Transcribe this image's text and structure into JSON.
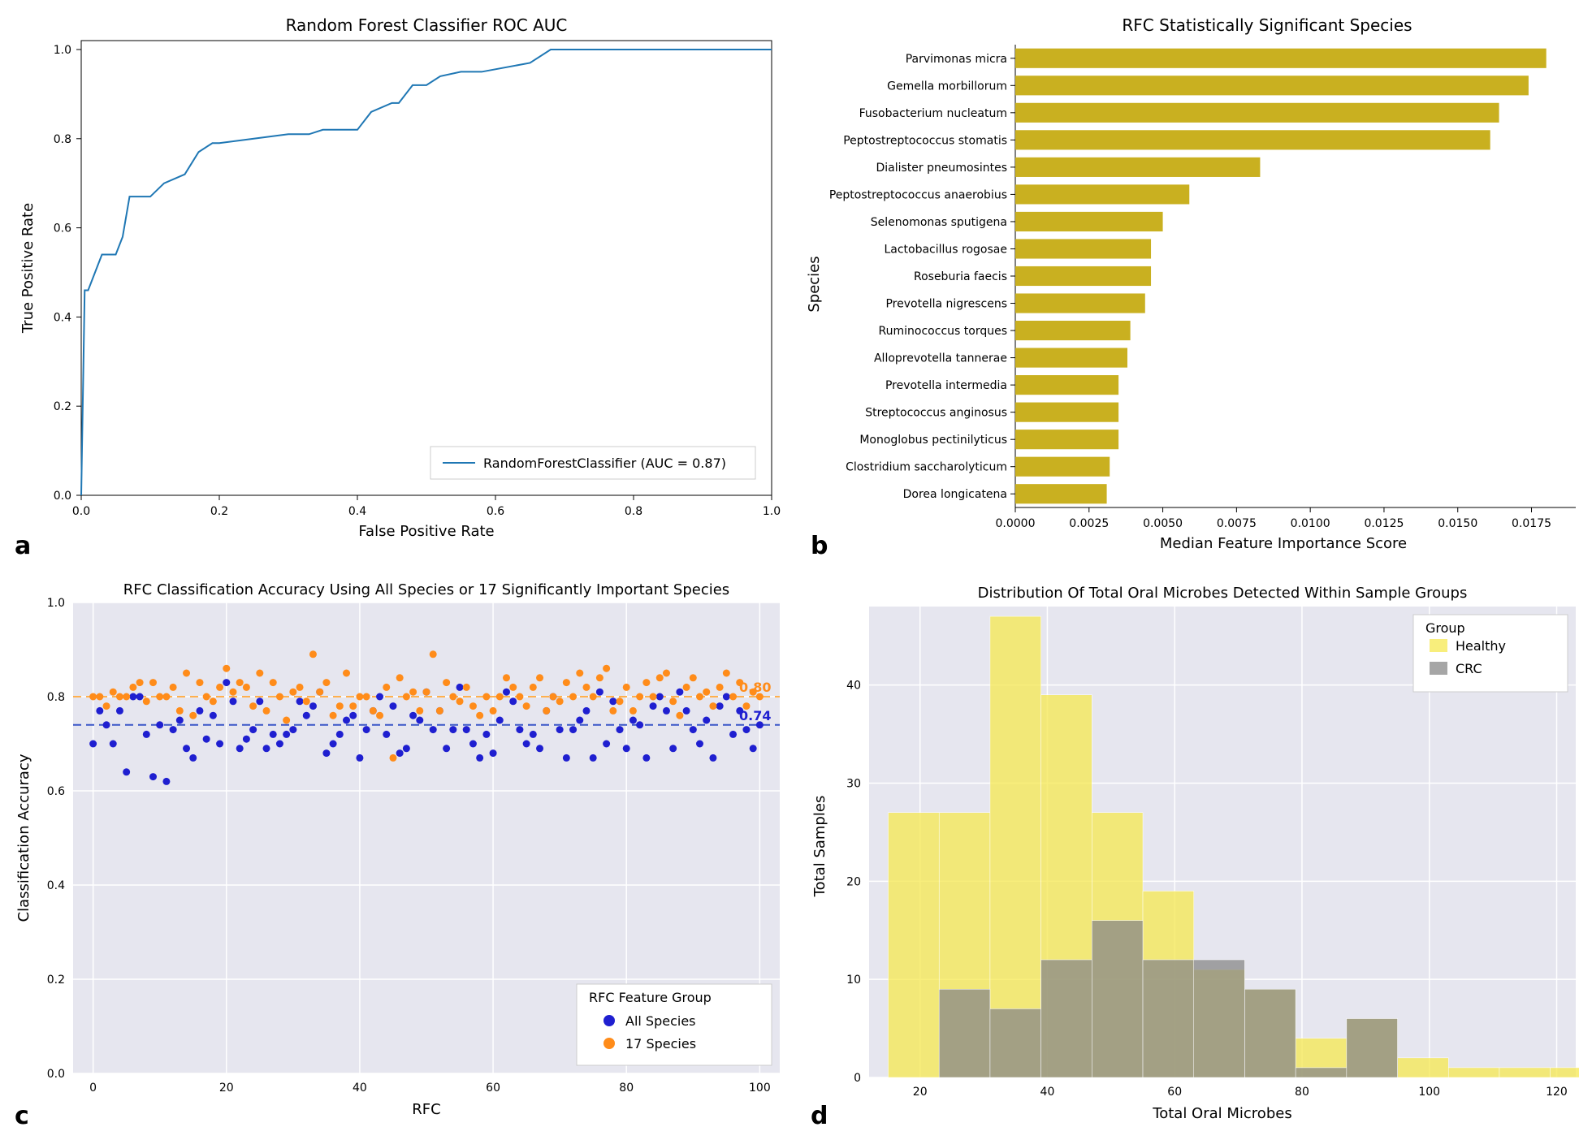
{
  "panel_a": {
    "label": "a",
    "type": "line",
    "title": "Random Forest Classifier ROC AUC",
    "xlabel": "False Positive Rate",
    "ylabel": "True Positive Rate",
    "xlim": [
      0,
      1.0
    ],
    "ylim": [
      0,
      1.02
    ],
    "xtick_step": 0.2,
    "ytick_step": 0.2,
    "line_color": "#1f77b4",
    "line_width": 2,
    "background_color": "#ffffff",
    "border_color": "#000000",
    "legend_text": "RandomForestClassifier (AUC = 0.87)",
    "roc_points": [
      [
        0.0,
        0.0
      ],
      [
        0.005,
        0.46
      ],
      [
        0.01,
        0.46
      ],
      [
        0.02,
        0.5
      ],
      [
        0.03,
        0.54
      ],
      [
        0.04,
        0.54
      ],
      [
        0.05,
        0.54
      ],
      [
        0.06,
        0.58
      ],
      [
        0.07,
        0.67
      ],
      [
        0.1,
        0.67
      ],
      [
        0.12,
        0.7
      ],
      [
        0.15,
        0.72
      ],
      [
        0.17,
        0.77
      ],
      [
        0.19,
        0.79
      ],
      [
        0.2,
        0.79
      ],
      [
        0.25,
        0.8
      ],
      [
        0.3,
        0.81
      ],
      [
        0.33,
        0.81
      ],
      [
        0.35,
        0.82
      ],
      [
        0.4,
        0.82
      ],
      [
        0.42,
        0.86
      ],
      [
        0.45,
        0.88
      ],
      [
        0.46,
        0.88
      ],
      [
        0.48,
        0.92
      ],
      [
        0.5,
        0.92
      ],
      [
        0.52,
        0.94
      ],
      [
        0.55,
        0.95
      ],
      [
        0.58,
        0.95
      ],
      [
        0.65,
        0.97
      ],
      [
        0.68,
        1.0
      ],
      [
        0.8,
        1.0
      ],
      [
        1.0,
        1.0
      ]
    ]
  },
  "panel_b": {
    "label": "b",
    "type": "bar-horizontal",
    "title": "RFC Statistically Significant Species",
    "xlabel": "Median Feature Importance Score",
    "ylabel": "Species",
    "bar_color": "#c9b020",
    "background_color": "#ffffff",
    "xlim": [
      0,
      0.019
    ],
    "xticks": [
      "0.0000",
      "0.0025",
      "0.0050",
      "0.0075",
      "0.0100",
      "0.0125",
      "0.0150",
      "0.0175"
    ],
    "xtick_values": [
      0,
      0.0025,
      0.005,
      0.0075,
      0.01,
      0.0125,
      0.015,
      0.0175
    ],
    "species": [
      {
        "name": "Parvimonas micra",
        "value": 0.018
      },
      {
        "name": "Gemella morbillorum",
        "value": 0.0174
      },
      {
        "name": "Fusobacterium nucleatum",
        "value": 0.0164
      },
      {
        "name": "Peptostreptococcus stomatis",
        "value": 0.0161
      },
      {
        "name": "Dialister pneumosintes",
        "value": 0.0083
      },
      {
        "name": "Peptostreptococcus anaerobius",
        "value": 0.0059
      },
      {
        "name": "Selenomonas sputigena",
        "value": 0.005
      },
      {
        "name": "Lactobacillus rogosae",
        "value": 0.0046
      },
      {
        "name": "Roseburia faecis",
        "value": 0.0046
      },
      {
        "name": "Prevotella nigrescens",
        "value": 0.0044
      },
      {
        "name": "Ruminococcus torques",
        "value": 0.0039
      },
      {
        "name": "Alloprevotella tannerae",
        "value": 0.0038
      },
      {
        "name": "Prevotella intermedia",
        "value": 0.0035
      },
      {
        "name": "Streptococcus anginosus",
        "value": 0.0035
      },
      {
        "name": "Monoglobus pectinilyticus",
        "value": 0.0035
      },
      {
        "name": "Clostridium saccharolyticum",
        "value": 0.0032
      },
      {
        "name": "Dorea longicatena",
        "value": 0.0031
      }
    ]
  },
  "panel_c": {
    "label": "c",
    "type": "scatter",
    "title": "RFC Classification Accuracy Using All Species or 17 Significantly Important Species",
    "xlabel": "RFC",
    "ylabel": "Classification Accuracy",
    "background_color": "#e6e6ef",
    "grid_color": "#ffffff",
    "xlim": [
      -3,
      103
    ],
    "ylim": [
      0,
      1.0
    ],
    "xtick_step": 20,
    "ytick_step": 0.2,
    "legend_title": "RFC Feature Group",
    "series": [
      {
        "name": "All Species",
        "color": "#1f1fd0",
        "mean": 0.74,
        "mean_label": "0.74",
        "dash_color": "#3a56c8"
      },
      {
        "name": "17 Species",
        "color": "#ff8c1a",
        "mean": 0.8,
        "mean_label": "0.80",
        "dash_color": "#ffb04d"
      }
    ],
    "all_species_points": [
      [
        0,
        0.7
      ],
      [
        1,
        0.77
      ],
      [
        2,
        0.74
      ],
      [
        3,
        0.7
      ],
      [
        4,
        0.77
      ],
      [
        5,
        0.64
      ],
      [
        6,
        0.8
      ],
      [
        7,
        0.8
      ],
      [
        8,
        0.72
      ],
      [
        9,
        0.63
      ],
      [
        10,
        0.74
      ],
      [
        11,
        0.62
      ],
      [
        12,
        0.73
      ],
      [
        13,
        0.75
      ],
      [
        14,
        0.69
      ],
      [
        15,
        0.67
      ],
      [
        16,
        0.77
      ],
      [
        17,
        0.71
      ],
      [
        18,
        0.76
      ],
      [
        19,
        0.7
      ],
      [
        20,
        0.83
      ],
      [
        21,
        0.79
      ],
      [
        22,
        0.69
      ],
      [
        23,
        0.71
      ],
      [
        24,
        0.73
      ],
      [
        25,
        0.79
      ],
      [
        26,
        0.69
      ],
      [
        27,
        0.72
      ],
      [
        28,
        0.7
      ],
      [
        29,
        0.72
      ],
      [
        30,
        0.73
      ],
      [
        31,
        0.79
      ],
      [
        32,
        0.76
      ],
      [
        33,
        0.78
      ],
      [
        34,
        0.81
      ],
      [
        35,
        0.68
      ],
      [
        36,
        0.7
      ],
      [
        37,
        0.72
      ],
      [
        38,
        0.75
      ],
      [
        39,
        0.76
      ],
      [
        40,
        0.67
      ],
      [
        41,
        0.73
      ],
      [
        42,
        0.77
      ],
      [
        43,
        0.8
      ],
      [
        44,
        0.72
      ],
      [
        45,
        0.78
      ],
      [
        46,
        0.68
      ],
      [
        47,
        0.69
      ],
      [
        48,
        0.76
      ],
      [
        49,
        0.75
      ],
      [
        50,
        0.81
      ],
      [
        51,
        0.73
      ],
      [
        52,
        0.77
      ],
      [
        53,
        0.69
      ],
      [
        54,
        0.73
      ],
      [
        55,
        0.82
      ],
      [
        56,
        0.73
      ],
      [
        57,
        0.7
      ],
      [
        58,
        0.67
      ],
      [
        59,
        0.72
      ],
      [
        60,
        0.68
      ],
      [
        61,
        0.75
      ],
      [
        62,
        0.81
      ],
      [
        63,
        0.79
      ],
      [
        64,
        0.73
      ],
      [
        65,
        0.7
      ],
      [
        66,
        0.72
      ],
      [
        67,
        0.69
      ],
      [
        68,
        0.77
      ],
      [
        69,
        0.8
      ],
      [
        70,
        0.73
      ],
      [
        71,
        0.67
      ],
      [
        72,
        0.73
      ],
      [
        73,
        0.75
      ],
      [
        74,
        0.77
      ],
      [
        75,
        0.67
      ],
      [
        76,
        0.81
      ],
      [
        77,
        0.7
      ],
      [
        78,
        0.79
      ],
      [
        79,
        0.73
      ],
      [
        80,
        0.69
      ],
      [
        81,
        0.75
      ],
      [
        82,
        0.74
      ],
      [
        83,
        0.67
      ],
      [
        84,
        0.78
      ],
      [
        85,
        0.8
      ],
      [
        86,
        0.77
      ],
      [
        87,
        0.69
      ],
      [
        88,
        0.81
      ],
      [
        89,
        0.77
      ],
      [
        90,
        0.73
      ],
      [
        91,
        0.7
      ],
      [
        92,
        0.75
      ],
      [
        93,
        0.67
      ],
      [
        94,
        0.78
      ],
      [
        95,
        0.8
      ],
      [
        96,
        0.72
      ],
      [
        97,
        0.77
      ],
      [
        98,
        0.73
      ],
      [
        99,
        0.69
      ],
      [
        100,
        0.74
      ]
    ],
    "seventeen_species_points": [
      [
        0,
        0.8
      ],
      [
        1,
        0.8
      ],
      [
        2,
        0.78
      ],
      [
        3,
        0.81
      ],
      [
        4,
        0.8
      ],
      [
        5,
        0.8
      ],
      [
        6,
        0.82
      ],
      [
        7,
        0.83
      ],
      [
        8,
        0.79
      ],
      [
        9,
        0.83
      ],
      [
        10,
        0.8
      ],
      [
        11,
        0.8
      ],
      [
        12,
        0.82
      ],
      [
        13,
        0.77
      ],
      [
        14,
        0.85
      ],
      [
        15,
        0.76
      ],
      [
        16,
        0.83
      ],
      [
        17,
        0.8
      ],
      [
        18,
        0.79
      ],
      [
        19,
        0.82
      ],
      [
        20,
        0.86
      ],
      [
        21,
        0.81
      ],
      [
        22,
        0.83
      ],
      [
        23,
        0.82
      ],
      [
        24,
        0.78
      ],
      [
        25,
        0.85
      ],
      [
        26,
        0.77
      ],
      [
        27,
        0.83
      ],
      [
        28,
        0.8
      ],
      [
        29,
        0.75
      ],
      [
        30,
        0.81
      ],
      [
        31,
        0.82
      ],
      [
        32,
        0.79
      ],
      [
        33,
        0.89
      ],
      [
        34,
        0.81
      ],
      [
        35,
        0.83
      ],
      [
        36,
        0.76
      ],
      [
        37,
        0.78
      ],
      [
        38,
        0.85
      ],
      [
        39,
        0.78
      ],
      [
        40,
        0.8
      ],
      [
        41,
        0.8
      ],
      [
        42,
        0.77
      ],
      [
        43,
        0.76
      ],
      [
        44,
        0.82
      ],
      [
        45,
        0.67
      ],
      [
        46,
        0.84
      ],
      [
        47,
        0.8
      ],
      [
        48,
        0.81
      ],
      [
        49,
        0.77
      ],
      [
        50,
        0.81
      ],
      [
        51,
        0.89
      ],
      [
        52,
        0.77
      ],
      [
        53,
        0.83
      ],
      [
        54,
        0.8
      ],
      [
        55,
        0.79
      ],
      [
        56,
        0.82
      ],
      [
        57,
        0.78
      ],
      [
        58,
        0.76
      ],
      [
        59,
        0.8
      ],
      [
        60,
        0.77
      ],
      [
        61,
        0.8
      ],
      [
        62,
        0.84
      ],
      [
        63,
        0.82
      ],
      [
        64,
        0.8
      ],
      [
        65,
        0.78
      ],
      [
        66,
        0.82
      ],
      [
        67,
        0.84
      ],
      [
        68,
        0.77
      ],
      [
        69,
        0.8
      ],
      [
        70,
        0.79
      ],
      [
        71,
        0.83
      ],
      [
        72,
        0.8
      ],
      [
        73,
        0.85
      ],
      [
        74,
        0.82
      ],
      [
        75,
        0.8
      ],
      [
        76,
        0.84
      ],
      [
        77,
        0.86
      ],
      [
        78,
        0.77
      ],
      [
        79,
        0.79
      ],
      [
        80,
        0.82
      ],
      [
        81,
        0.77
      ],
      [
        82,
        0.8
      ],
      [
        83,
        0.83
      ],
      [
        84,
        0.8
      ],
      [
        85,
        0.84
      ],
      [
        86,
        0.85
      ],
      [
        87,
        0.79
      ],
      [
        88,
        0.76
      ],
      [
        89,
        0.82
      ],
      [
        90,
        0.84
      ],
      [
        91,
        0.8
      ],
      [
        92,
        0.81
      ],
      [
        93,
        0.78
      ],
      [
        94,
        0.82
      ],
      [
        95,
        0.85
      ],
      [
        96,
        0.8
      ],
      [
        97,
        0.83
      ],
      [
        98,
        0.78
      ],
      [
        99,
        0.81
      ],
      [
        100,
        0.8
      ]
    ]
  },
  "panel_d": {
    "label": "d",
    "type": "histogram",
    "title": "Distribution Of Total Oral Microbes Detected Within Sample Groups",
    "xlabel": "Total Oral Microbes",
    "ylabel": "Total Samples",
    "background_color": "#e6e6ef",
    "grid_color": "#ffffff",
    "xlim": [
      12,
      123
    ],
    "ylim": [
      0,
      48
    ],
    "xtick_step": 20,
    "xtick_start": 20,
    "ytick_step": 10,
    "legend_title": "Group",
    "bin_width": 8,
    "series": [
      {
        "name": "Healthy",
        "color": "#f5e850",
        "alpha": 0.75
      },
      {
        "name": "CRC",
        "color": "#888888",
        "alpha": 0.75
      }
    ],
    "healthy_bins": [
      {
        "x": 15,
        "count": 27
      },
      {
        "x": 23,
        "count": 27
      },
      {
        "x": 31,
        "count": 47
      },
      {
        "x": 39,
        "count": 39
      },
      {
        "x": 47,
        "count": 27
      },
      {
        "x": 55,
        "count": 19
      },
      {
        "x": 63,
        "count": 11
      },
      {
        "x": 71,
        "count": 9
      },
      {
        "x": 79,
        "count": 4
      },
      {
        "x": 87,
        "count": 6
      },
      {
        "x": 95,
        "count": 2
      },
      {
        "x": 103,
        "count": 1
      },
      {
        "x": 111,
        "count": 1
      },
      {
        "x": 119,
        "count": 1
      }
    ],
    "crc_bins": [
      {
        "x": 15,
        "count": 0
      },
      {
        "x": 23,
        "count": 9
      },
      {
        "x": 31,
        "count": 7
      },
      {
        "x": 39,
        "count": 12
      },
      {
        "x": 47,
        "count": 16
      },
      {
        "x": 55,
        "count": 12
      },
      {
        "x": 63,
        "count": 12
      },
      {
        "x": 71,
        "count": 9
      },
      {
        "x": 79,
        "count": 1
      },
      {
        "x": 87,
        "count": 6
      },
      {
        "x": 95,
        "count": 0
      },
      {
        "x": 103,
        "count": 0
      },
      {
        "x": 111,
        "count": 0
      },
      {
        "x": 119,
        "count": 0
      }
    ]
  }
}
